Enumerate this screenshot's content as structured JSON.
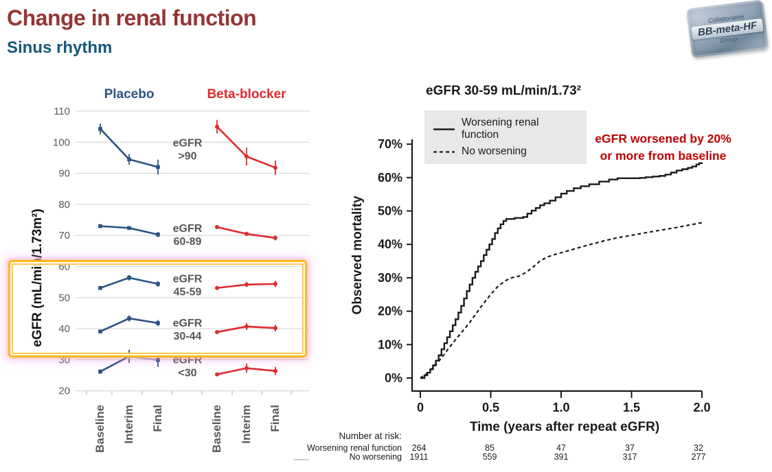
{
  "slide": {
    "title": "Change in renal function",
    "subtitle": "Sinus rhythm"
  },
  "logo": {
    "top": "Collaborative",
    "middle": "BB-meta-HF",
    "bottom": "Group"
  },
  "colors": {
    "title": "#943634",
    "subtitle": "#17567C",
    "placebo": "#2B5385",
    "placebo_light": "#93A3C5",
    "beta_blocker": "#DF2B2E",
    "axis_text": "#595959",
    "grid": "#DBDBDB",
    "km_ink": "#1A1A1A",
    "annotation": "#C00000",
    "highlight": "#FFB91E",
    "legend_bg": "#E8E8E8"
  },
  "chart_data": [
    {
      "type": "line",
      "ylabel": "eGFR (mL/min/1.73m²)",
      "ylim": [
        20,
        110
      ],
      "yticks": [
        110,
        100,
        90,
        80,
        70,
        60,
        50,
        40,
        30,
        20
      ],
      "categories": [
        "Baseline",
        "Interim",
        "Final"
      ],
      "panels": [
        {
          "label": "Placebo"
        },
        {
          "label": "Beta-blocker"
        }
      ],
      "groups": [
        {
          "label": "eGFR",
          "range": ">90",
          "label_y": 98,
          "placebo": {
            "values": [
              104.3,
              94.5,
              92.0
            ],
            "err": [
              1.7,
              1.7,
              2.4
            ]
          },
          "beta_blocker": {
            "values": [
              105.0,
              95.4,
              91.8
            ],
            "err": [
              2.2,
              2.9,
              2.3
            ]
          }
        },
        {
          "label": "eGFR",
          "range": "60-89",
          "label_y": 70.5,
          "placebo": {
            "values": [
              73.0,
              72.4,
              70.3
            ],
            "err": [
              0.6,
              0.6,
              0.8
            ]
          },
          "beta_blocker": {
            "values": [
              72.7,
              70.5,
              69.2
            ],
            "err": [
              0.6,
              0.7,
              0.8
            ]
          }
        },
        {
          "label": "eGFR",
          "range": "45-59",
          "label_y": 54.3,
          "placebo": {
            "values": [
              53.1,
              56.4,
              54.4
            ],
            "err": [
              0.6,
              0.9,
              0.9
            ]
          },
          "beta_blocker": {
            "values": [
              53.1,
              54.2,
              54.4
            ],
            "err": [
              0.6,
              0.8,
              1.0
            ]
          }
        },
        {
          "label": "eGFR",
          "range": "30-44",
          "label_y": 40.0,
          "placebo": {
            "values": [
              39.1,
              43.3,
              41.8
            ],
            "err": [
              0.6,
              1.0,
              1.0
            ]
          },
          "beta_blocker": {
            "values": [
              38.9,
              40.7,
              40.2
            ],
            "err": [
              0.6,
              1.1,
              1.1
            ]
          }
        },
        {
          "label": "eGFR",
          "range": "<30",
          "label_y": 28.2,
          "placebo": {
            "values": [
              26.2,
              31.1,
              29.9
            ],
            "err": [
              0.7,
              2.1,
              2.2
            ],
            "light_interim": true
          },
          "beta_blocker": {
            "values": [
              25.3,
              27.3,
              26.4
            ],
            "err": [
              0.6,
              1.5,
              1.3
            ]
          }
        }
      ],
      "highlight_ranges": [
        "45-59",
        "30-44"
      ]
    },
    {
      "type": "line",
      "title": "eGFR 30-59 mL/min/1.73²",
      "xlabel": "Time (years after repeat eGFR)",
      "ylabel": "Observed mortality",
      "xlim": [
        0,
        2
      ],
      "ylim_pct": [
        0,
        70
      ],
      "xticks": [
        "0",
        "0.5",
        "1.0",
        "1.5",
        "2.0"
      ],
      "ytick_step": 10,
      "annotation": "eGFR worsened by 20% or more from baseline",
      "series": [
        {
          "name": "Worsening renal function",
          "style": "solid",
          "step": true,
          "points": [
            [
              0,
              0
            ],
            [
              0.03,
              0.8
            ],
            [
              0.05,
              1.6
            ],
            [
              0.07,
              2.6
            ],
            [
              0.09,
              3.8
            ],
            [
              0.11,
              5.2
            ],
            [
              0.13,
              6.8
            ],
            [
              0.15,
              8.6
            ],
            [
              0.17,
              10.4
            ],
            [
              0.19,
              12.2
            ],
            [
              0.21,
              14
            ],
            [
              0.23,
              15.8
            ],
            [
              0.25,
              17.6
            ],
            [
              0.27,
              19.6
            ],
            [
              0.29,
              21.6
            ],
            [
              0.31,
              23.8
            ],
            [
              0.33,
              26
            ],
            [
              0.35,
              28
            ],
            [
              0.37,
              30
            ],
            [
              0.39,
              31.8
            ],
            [
              0.41,
              33.4
            ],
            [
              0.43,
              35
            ],
            [
              0.45,
              36.8
            ],
            [
              0.47,
              38.4
            ],
            [
              0.49,
              40
            ],
            [
              0.51,
              41.6
            ],
            [
              0.53,
              43.4
            ],
            [
              0.55,
              44.8
            ],
            [
              0.57,
              46
            ],
            [
              0.59,
              47
            ],
            [
              0.61,
              47.6
            ],
            [
              0.67,
              47.9
            ],
            [
              0.73,
              48.2
            ],
            [
              0.76,
              49.2
            ],
            [
              0.79,
              50.1
            ],
            [
              0.82,
              50.9
            ],
            [
              0.85,
              51.7
            ],
            [
              0.88,
              52.3
            ],
            [
              0.92,
              53.1
            ],
            [
              0.96,
              54.1
            ],
            [
              1.0,
              55.2
            ],
            [
              1.04,
              56
            ],
            [
              1.09,
              56.8
            ],
            [
              1.14,
              57.4
            ],
            [
              1.2,
              58
            ],
            [
              1.27,
              58.8
            ],
            [
              1.34,
              59.4
            ],
            [
              1.4,
              59.8
            ],
            [
              1.56,
              59.9
            ],
            [
              1.6,
              60.1
            ],
            [
              1.65,
              60.3
            ],
            [
              1.7,
              60.5
            ],
            [
              1.74,
              60.9
            ],
            [
              1.78,
              61.5
            ],
            [
              1.82,
              62.1
            ],
            [
              1.86,
              62.5
            ],
            [
              1.9,
              62.9
            ],
            [
              1.93,
              63.3
            ],
            [
              1.96,
              63.9
            ],
            [
              1.98,
              64.3
            ],
            [
              2.0,
              64.5
            ]
          ]
        },
        {
          "name": "No worsening",
          "style": "dashed",
          "step": false,
          "points": [
            [
              0,
              0
            ],
            [
              0.05,
              1.5
            ],
            [
              0.1,
              3.5
            ],
            [
              0.15,
              6
            ],
            [
              0.2,
              8.8
            ],
            [
              0.25,
              11.5
            ],
            [
              0.3,
              14
            ],
            [
              0.35,
              16.6
            ],
            [
              0.4,
              19.5
            ],
            [
              0.45,
              22.4
            ],
            [
              0.5,
              25
            ],
            [
              0.55,
              27.4
            ],
            [
              0.6,
              29
            ],
            [
              0.64,
              29.9
            ],
            [
              0.7,
              30.5
            ],
            [
              0.75,
              31.6
            ],
            [
              0.8,
              33.2
            ],
            [
              0.85,
              35
            ],
            [
              0.9,
              36.2
            ],
            [
              0.95,
              36.9
            ],
            [
              1.0,
              37.5
            ],
            [
              1.1,
              38.7
            ],
            [
              1.2,
              39.9
            ],
            [
              1.3,
              41
            ],
            [
              1.4,
              42
            ],
            [
              1.5,
              42.7
            ],
            [
              1.6,
              43.5
            ],
            [
              1.7,
              44.2
            ],
            [
              1.8,
              44.9
            ],
            [
              1.9,
              45.7
            ],
            [
              1.95,
              46.1
            ],
            [
              2.0,
              46.5
            ]
          ]
        }
      ],
      "number_at_risk": {
        "label": "Number at risk:",
        "rows": [
          {
            "name": "Worsening renal function",
            "values": [
              "264",
              "85",
              "47",
              "37",
              "32"
            ]
          },
          {
            "name": "No worsening",
            "values": [
              "1911",
              "559",
              "391",
              "317",
              "277"
            ]
          }
        ]
      }
    }
  ]
}
